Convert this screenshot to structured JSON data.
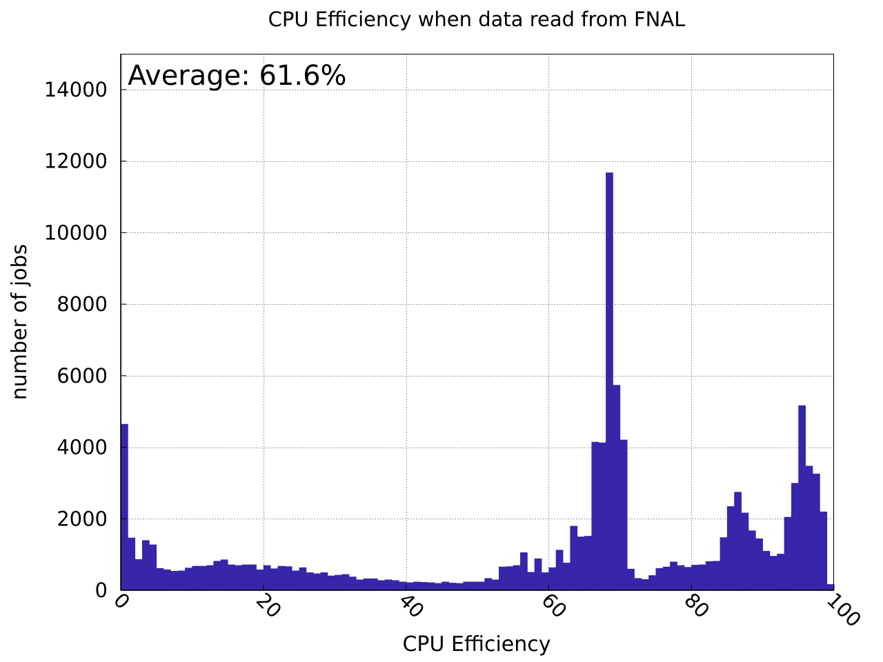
{
  "chart_data": {
    "type": "bar",
    "title": "CPU Efficiency when data read from FNAL",
    "xlabel": "CPU Efficiency",
    "ylabel": "number of jobs",
    "annotation": "Average: 61.6%",
    "xlim": [
      0,
      100
    ],
    "ylim": [
      0,
      15000
    ],
    "xticks": [
      0,
      20,
      40,
      60,
      80,
      100
    ],
    "yticks": [
      0,
      2000,
      4000,
      6000,
      8000,
      10000,
      12000,
      14000
    ],
    "grid": true,
    "bar_color": "#3526aa",
    "bin_width": 1,
    "x": [
      0,
      1,
      2,
      3,
      4,
      5,
      6,
      7,
      8,
      9,
      10,
      11,
      12,
      13,
      14,
      15,
      16,
      17,
      18,
      19,
      20,
      21,
      22,
      23,
      24,
      25,
      26,
      27,
      28,
      29,
      30,
      31,
      32,
      33,
      34,
      35,
      36,
      37,
      38,
      39,
      40,
      41,
      42,
      43,
      44,
      45,
      46,
      47,
      48,
      49,
      50,
      51,
      52,
      53,
      54,
      55,
      56,
      57,
      58,
      59,
      60,
      61,
      62,
      63,
      64,
      65,
      66,
      67,
      68,
      69,
      70,
      71,
      72,
      73,
      74,
      75,
      76,
      77,
      78,
      79,
      80,
      81,
      82,
      83,
      84,
      85,
      86,
      87,
      88,
      89,
      90,
      91,
      92,
      93,
      94,
      95,
      96,
      97,
      98,
      99
    ],
    "values": [
      4650,
      1470,
      870,
      1400,
      1280,
      620,
      580,
      540,
      550,
      630,
      680,
      680,
      700,
      820,
      860,
      720,
      700,
      720,
      720,
      580,
      700,
      610,
      680,
      670,
      550,
      640,
      500,
      470,
      500,
      410,
      430,
      450,
      380,
      300,
      330,
      330,
      280,
      300,
      280,
      240,
      220,
      240,
      230,
      220,
      200,
      240,
      210,
      200,
      240,
      240,
      240,
      340,
      300,
      660,
      670,
      700,
      1060,
      510,
      890,
      500,
      640,
      1130,
      770,
      1800,
      1500,
      1520,
      4150,
      4130,
      11680,
      5740,
      4210,
      600,
      340,
      310,
      420,
      620,
      660,
      800,
      700,
      650,
      710,
      720,
      810,
      820,
      1480,
      2350,
      2750,
      2170,
      1670,
      1450,
      1100,
      960,
      1020,
      2050,
      3000,
      5170,
      3480,
      3260,
      2200,
      170
    ]
  }
}
